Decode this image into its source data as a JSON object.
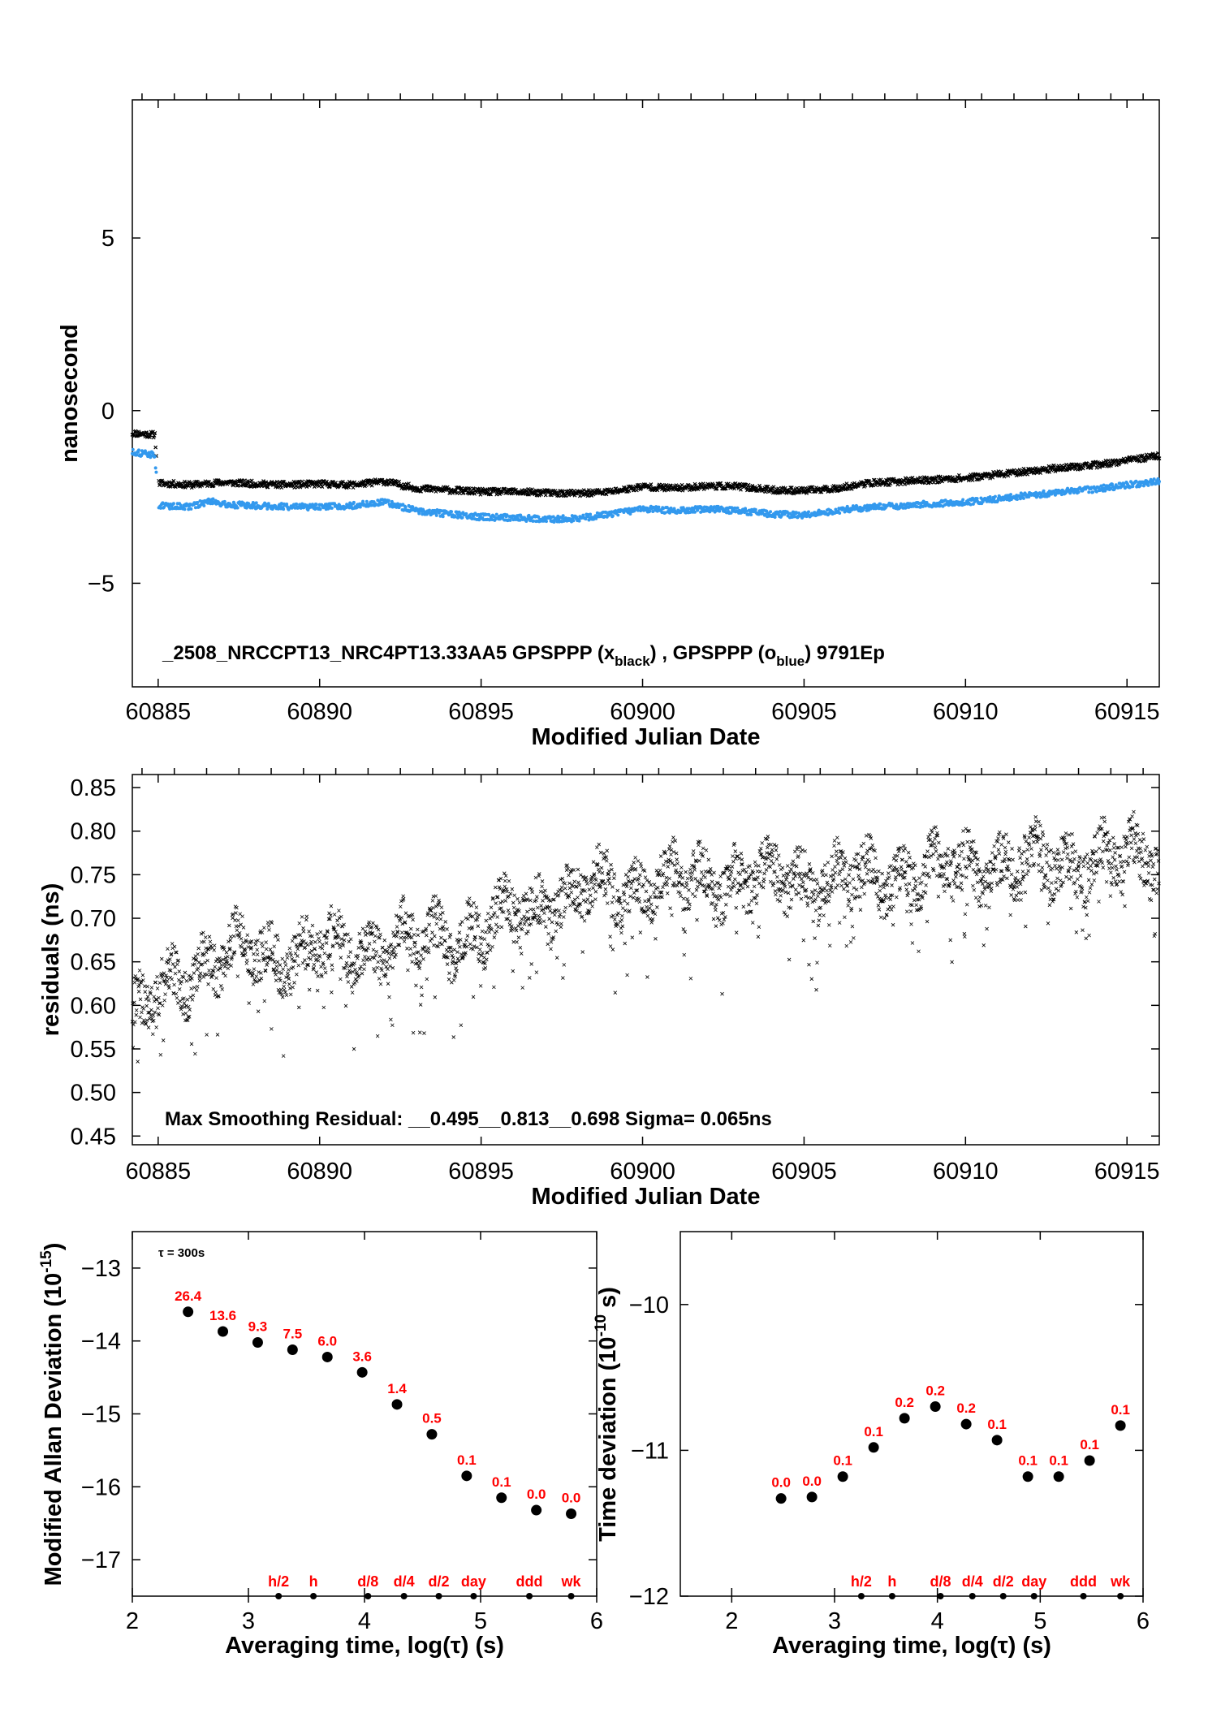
{
  "chart_data": [
    {
      "type": "scatter",
      "xlabel": "Modified Julian Date",
      "ylabel": "nanosecond",
      "xlim": [
        60884.2,
        60916.0
      ],
      "ylim": [
        -8,
        9
      ],
      "x_ticks": [
        "60885",
        "60890",
        "60895",
        "60900",
        "60905",
        "60910",
        "60915"
      ],
      "y_ticks": [
        "5",
        "0",
        "−5"
      ],
      "annotation": {
        "id": "_2508_NRCCPT13_NRC4PT13.33AA5",
        "series_text_1": "GPSPPP (x",
        "series_sub_1": "black",
        "series_text_2": ") ,  GPSPPP (o",
        "series_sub_2": "blue",
        "series_text_3": ")  9791Ep"
      },
      "series": [
        {
          "color": "#000000",
          "marker": "x",
          "points": [
            [
              60884.2,
              -0.65
            ],
            [
              60884.6,
              -0.68
            ],
            [
              60884.9,
              -0.7
            ],
            [
              60885.0,
              -2.1
            ],
            [
              60886.0,
              -2.15
            ],
            [
              60887.0,
              -2.08
            ],
            [
              60888.0,
              -2.12
            ],
            [
              60889.0,
              -2.15
            ],
            [
              60890.0,
              -2.12
            ],
            [
              60891.0,
              -2.15
            ],
            [
              60892.0,
              -2.05
            ],
            [
              60893.0,
              -2.25
            ],
            [
              60894.0,
              -2.3
            ],
            [
              60895.0,
              -2.35
            ],
            [
              60896.0,
              -2.35
            ],
            [
              60897.0,
              -2.38
            ],
            [
              60898.0,
              -2.4
            ],
            [
              60899.0,
              -2.35
            ],
            [
              60900.0,
              -2.2
            ],
            [
              60901.0,
              -2.25
            ],
            [
              60902.0,
              -2.18
            ],
            [
              60903.0,
              -2.2
            ],
            [
              60904.0,
              -2.3
            ],
            [
              60905.0,
              -2.32
            ],
            [
              60906.0,
              -2.25
            ],
            [
              60907.0,
              -2.1
            ],
            [
              60908.0,
              -2.05
            ],
            [
              60909.0,
              -2.0
            ],
            [
              60910.0,
              -1.95
            ],
            [
              60911.0,
              -1.85
            ],
            [
              60912.0,
              -1.75
            ],
            [
              60913.0,
              -1.65
            ],
            [
              60914.0,
              -1.58
            ],
            [
              60915.0,
              -1.45
            ],
            [
              60916.0,
              -1.3
            ]
          ]
        },
        {
          "color": "#3399ee",
          "marker": "o",
          "points": [
            [
              60884.2,
              -1.2
            ],
            [
              60884.6,
              -1.25
            ],
            [
              60884.9,
              -1.28
            ],
            [
              60885.0,
              -2.75
            ],
            [
              60886.0,
              -2.78
            ],
            [
              60886.7,
              -2.6
            ],
            [
              60887.0,
              -2.72
            ],
            [
              60888.0,
              -2.75
            ],
            [
              60889.0,
              -2.78
            ],
            [
              60890.0,
              -2.8
            ],
            [
              60891.0,
              -2.75
            ],
            [
              60892.0,
              -2.65
            ],
            [
              60893.0,
              -2.9
            ],
            [
              60894.0,
              -3.0
            ],
            [
              60895.0,
              -3.08
            ],
            [
              60896.0,
              -3.1
            ],
            [
              60897.0,
              -3.15
            ],
            [
              60898.0,
              -3.12
            ],
            [
              60899.0,
              -3.0
            ],
            [
              60900.0,
              -2.85
            ],
            [
              60901.0,
              -2.9
            ],
            [
              60902.0,
              -2.85
            ],
            [
              60903.0,
              -2.9
            ],
            [
              60904.0,
              -3.0
            ],
            [
              60905.0,
              -3.02
            ],
            [
              60906.0,
              -2.9
            ],
            [
              60907.0,
              -2.8
            ],
            [
              60908.0,
              -2.75
            ],
            [
              60909.0,
              -2.7
            ],
            [
              60910.0,
              -2.65
            ],
            [
              60911.0,
              -2.55
            ],
            [
              60912.0,
              -2.45
            ],
            [
              60913.0,
              -2.35
            ],
            [
              60914.0,
              -2.28
            ],
            [
              60915.0,
              -2.15
            ],
            [
              60916.0,
              -2.05
            ]
          ]
        }
      ]
    },
    {
      "type": "scatter",
      "xlabel": "Modified Julian Date",
      "ylabel": "residuals (ns)",
      "xlim": [
        60884.2,
        60916.0
      ],
      "ylim": [
        0.44,
        0.865
      ],
      "x_ticks": [
        "60885",
        "60890",
        "60895",
        "60900",
        "60905",
        "60910",
        "60915"
      ],
      "y_ticks": [
        "0.85",
        "0.80",
        "0.75",
        "0.70",
        "0.65",
        "0.60",
        "0.55",
        "0.50",
        "0.45"
      ],
      "annotation": "Max Smoothing Residual: __0.495__0.813__0.698  Sigma= 0.065ns",
      "series": [
        {
          "color": "#000000",
          "marker": "x",
          "trend": [
            [
              60884.2,
              0.58
            ],
            [
              60885.5,
              0.63
            ],
            [
              60887.0,
              0.655
            ],
            [
              60889.0,
              0.66
            ],
            [
              60891.0,
              0.665
            ],
            [
              60893.0,
              0.675
            ],
            [
              60895.0,
              0.685
            ],
            [
              60897.0,
              0.72
            ],
            [
              60899.0,
              0.735
            ],
            [
              60901.0,
              0.745
            ],
            [
              60903.0,
              0.745
            ],
            [
              60905.0,
              0.745
            ],
            [
              60907.0,
              0.745
            ],
            [
              60909.0,
              0.755
            ],
            [
              60911.0,
              0.76
            ],
            [
              60913.0,
              0.765
            ],
            [
              60915.0,
              0.77
            ],
            [
              60916.0,
              0.77
            ]
          ],
          "spread": 0.06
        }
      ]
    },
    {
      "type": "scatter",
      "xlabel": "Averaging time, log(τ) (s)",
      "ylabel": "Modified Allan Deviation",
      "ylabel_exp": "-15",
      "tau_note": "τ = 300s",
      "xlim": [
        2,
        6
      ],
      "ylim": [
        -17.5,
        -12.5
      ],
      "x_ticks": [
        "2",
        "3",
        "4",
        "5",
        "6"
      ],
      "y_ticks": [
        "−13",
        "−14",
        "−15",
        "−16",
        "−17"
      ],
      "x": [
        2.48,
        2.78,
        3.08,
        3.38,
        3.68,
        3.98,
        4.28,
        4.58,
        4.88,
        5.18,
        5.48,
        5.78
      ],
      "values": [
        -13.6,
        -13.87,
        -14.02,
        -14.12,
        -14.22,
        -14.43,
        -14.87,
        -15.28,
        -15.85,
        -16.15,
        -16.32,
        -16.37
      ],
      "point_labels": [
        "26.4",
        "13.6",
        "9.3",
        "7.5",
        "6.0",
        "3.6",
        "1.4",
        "0.5",
        "0.1",
        "0.1",
        "0.0",
        "0.0"
      ],
      "markers": [
        {
          "label": "h/2",
          "x": 3.26
        },
        {
          "label": "h",
          "x": 3.56
        },
        {
          "label": "d/8",
          "x": 4.03
        },
        {
          "label": "d/4",
          "x": 4.34
        },
        {
          "label": "d/2",
          "x": 4.64
        },
        {
          "label": "day",
          "x": 4.94
        },
        {
          "label": "ddd",
          "x": 5.42
        },
        {
          "label": "wk",
          "x": 5.78
        }
      ]
    },
    {
      "type": "scatter",
      "xlabel": "Averaging time, log(τ) (s)",
      "ylabel": "Time deviation",
      "ylabel_exp": "-10",
      "ylabel_unit": "s",
      "xlim": [
        1.5,
        6.0
      ],
      "ylim": [
        -12.0,
        -9.5
      ],
      "x_ticks": [
        "2",
        "3",
        "4",
        "5",
        "6"
      ],
      "y_ticks": [
        "−10",
        "−11",
        "−12"
      ],
      "x": [
        2.48,
        2.78,
        3.08,
        3.38,
        3.68,
        3.98,
        4.28,
        4.58,
        4.88,
        5.18,
        5.48,
        5.78
      ],
      "values": [
        -11.33,
        -11.32,
        -11.18,
        -10.98,
        -10.78,
        -10.7,
        -10.82,
        -10.93,
        -11.18,
        -11.18,
        -11.07,
        -10.83
      ],
      "point_labels": [
        "0.0",
        "0.0",
        "0.1",
        "0.1",
        "0.2",
        "0.2",
        "0.2",
        "0.1",
        "0.1",
        "0.1",
        "0.1",
        "0.1"
      ],
      "markers": [
        {
          "label": "h/2",
          "x": 3.26
        },
        {
          "label": "h",
          "x": 3.56
        },
        {
          "label": "d/8",
          "x": 4.03
        },
        {
          "label": "d/4",
          "x": 4.34
        },
        {
          "label": "d/2",
          "x": 4.64
        },
        {
          "label": "day",
          "x": 4.94
        },
        {
          "label": "ddd",
          "x": 5.42
        },
        {
          "label": "wk",
          "x": 5.78
        }
      ]
    }
  ]
}
